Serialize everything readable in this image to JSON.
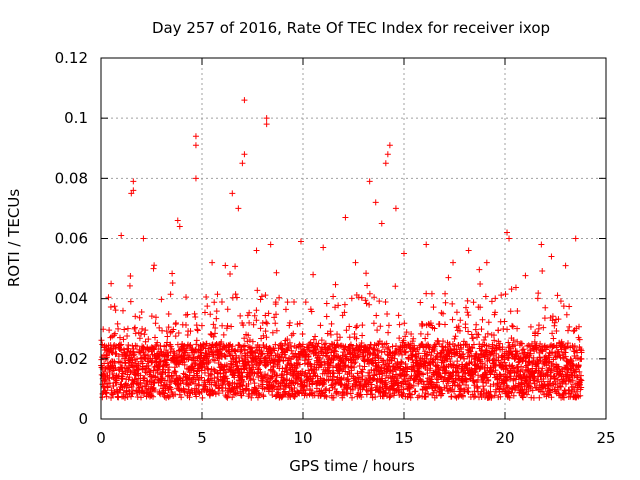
{
  "chart_data": {
    "type": "scatter",
    "title": "Day 257 of 2016, Rate Of TEC Index for receiver ixop",
    "xlabel": "GPS time / hours",
    "ylabel": "ROTI / TECUs",
    "xlim": [
      0,
      25
    ],
    "ylim": [
      0,
      0.12
    ],
    "xticks": [
      "0",
      "5",
      "10",
      "15",
      "20",
      "25"
    ],
    "yticks": [
      "0",
      "0.02",
      "0.04",
      "0.06",
      "0.08",
      "0.1",
      "0.12"
    ],
    "xtick_values": [
      0,
      5,
      10,
      15,
      20,
      25
    ],
    "ytick_values": [
      0,
      0.02,
      0.04,
      0.06,
      0.08,
      0.1,
      0.12
    ],
    "grid": true,
    "marker": "+",
    "color": "#ff0000",
    "data_range_x": [
      0,
      23.8
    ],
    "points": [
      [
        1.6,
        0.079
      ],
      [
        1.6,
        0.076
      ],
      [
        1.5,
        0.075
      ],
      [
        4.7,
        0.094
      ],
      [
        4.7,
        0.091
      ],
      [
        4.7,
        0.08
      ],
      [
        7.1,
        0.106
      ],
      [
        7.1,
        0.088
      ],
      [
        7.0,
        0.085
      ],
      [
        8.2,
        0.1
      ],
      [
        8.2,
        0.098
      ],
      [
        14.3,
        0.091
      ],
      [
        14.2,
        0.088
      ],
      [
        14.1,
        0.085
      ],
      [
        13.3,
        0.079
      ],
      [
        13.6,
        0.072
      ],
      [
        12.1,
        0.067
      ],
      [
        6.5,
        0.075
      ],
      [
        6.8,
        0.07
      ],
      [
        3.8,
        0.066
      ],
      [
        3.9,
        0.064
      ],
      [
        20.1,
        0.062
      ],
      [
        20.2,
        0.06
      ],
      [
        16.1,
        0.058
      ],
      [
        23.5,
        0.06
      ],
      [
        9.9,
        0.059
      ],
      [
        8.4,
        0.058
      ],
      [
        2.1,
        0.06
      ],
      [
        1.0,
        0.061
      ],
      [
        11.0,
        0.057
      ],
      [
        15.0,
        0.055
      ],
      [
        18.2,
        0.056
      ],
      [
        21.8,
        0.058
      ],
      [
        0.5,
        0.045
      ],
      [
        2.6,
        0.05
      ],
      [
        5.5,
        0.052
      ],
      [
        7.7,
        0.056
      ],
      [
        10.5,
        0.048
      ],
      [
        12.6,
        0.052
      ],
      [
        13.9,
        0.065
      ],
      [
        14.6,
        0.07
      ],
      [
        17.2,
        0.047
      ],
      [
        19.1,
        0.052
      ],
      [
        22.3,
        0.054
      ],
      [
        23.0,
        0.051
      ]
    ],
    "dense_band_note": "dense cloud of points between 0.005 and 0.035 across 0-23.8 h"
  }
}
